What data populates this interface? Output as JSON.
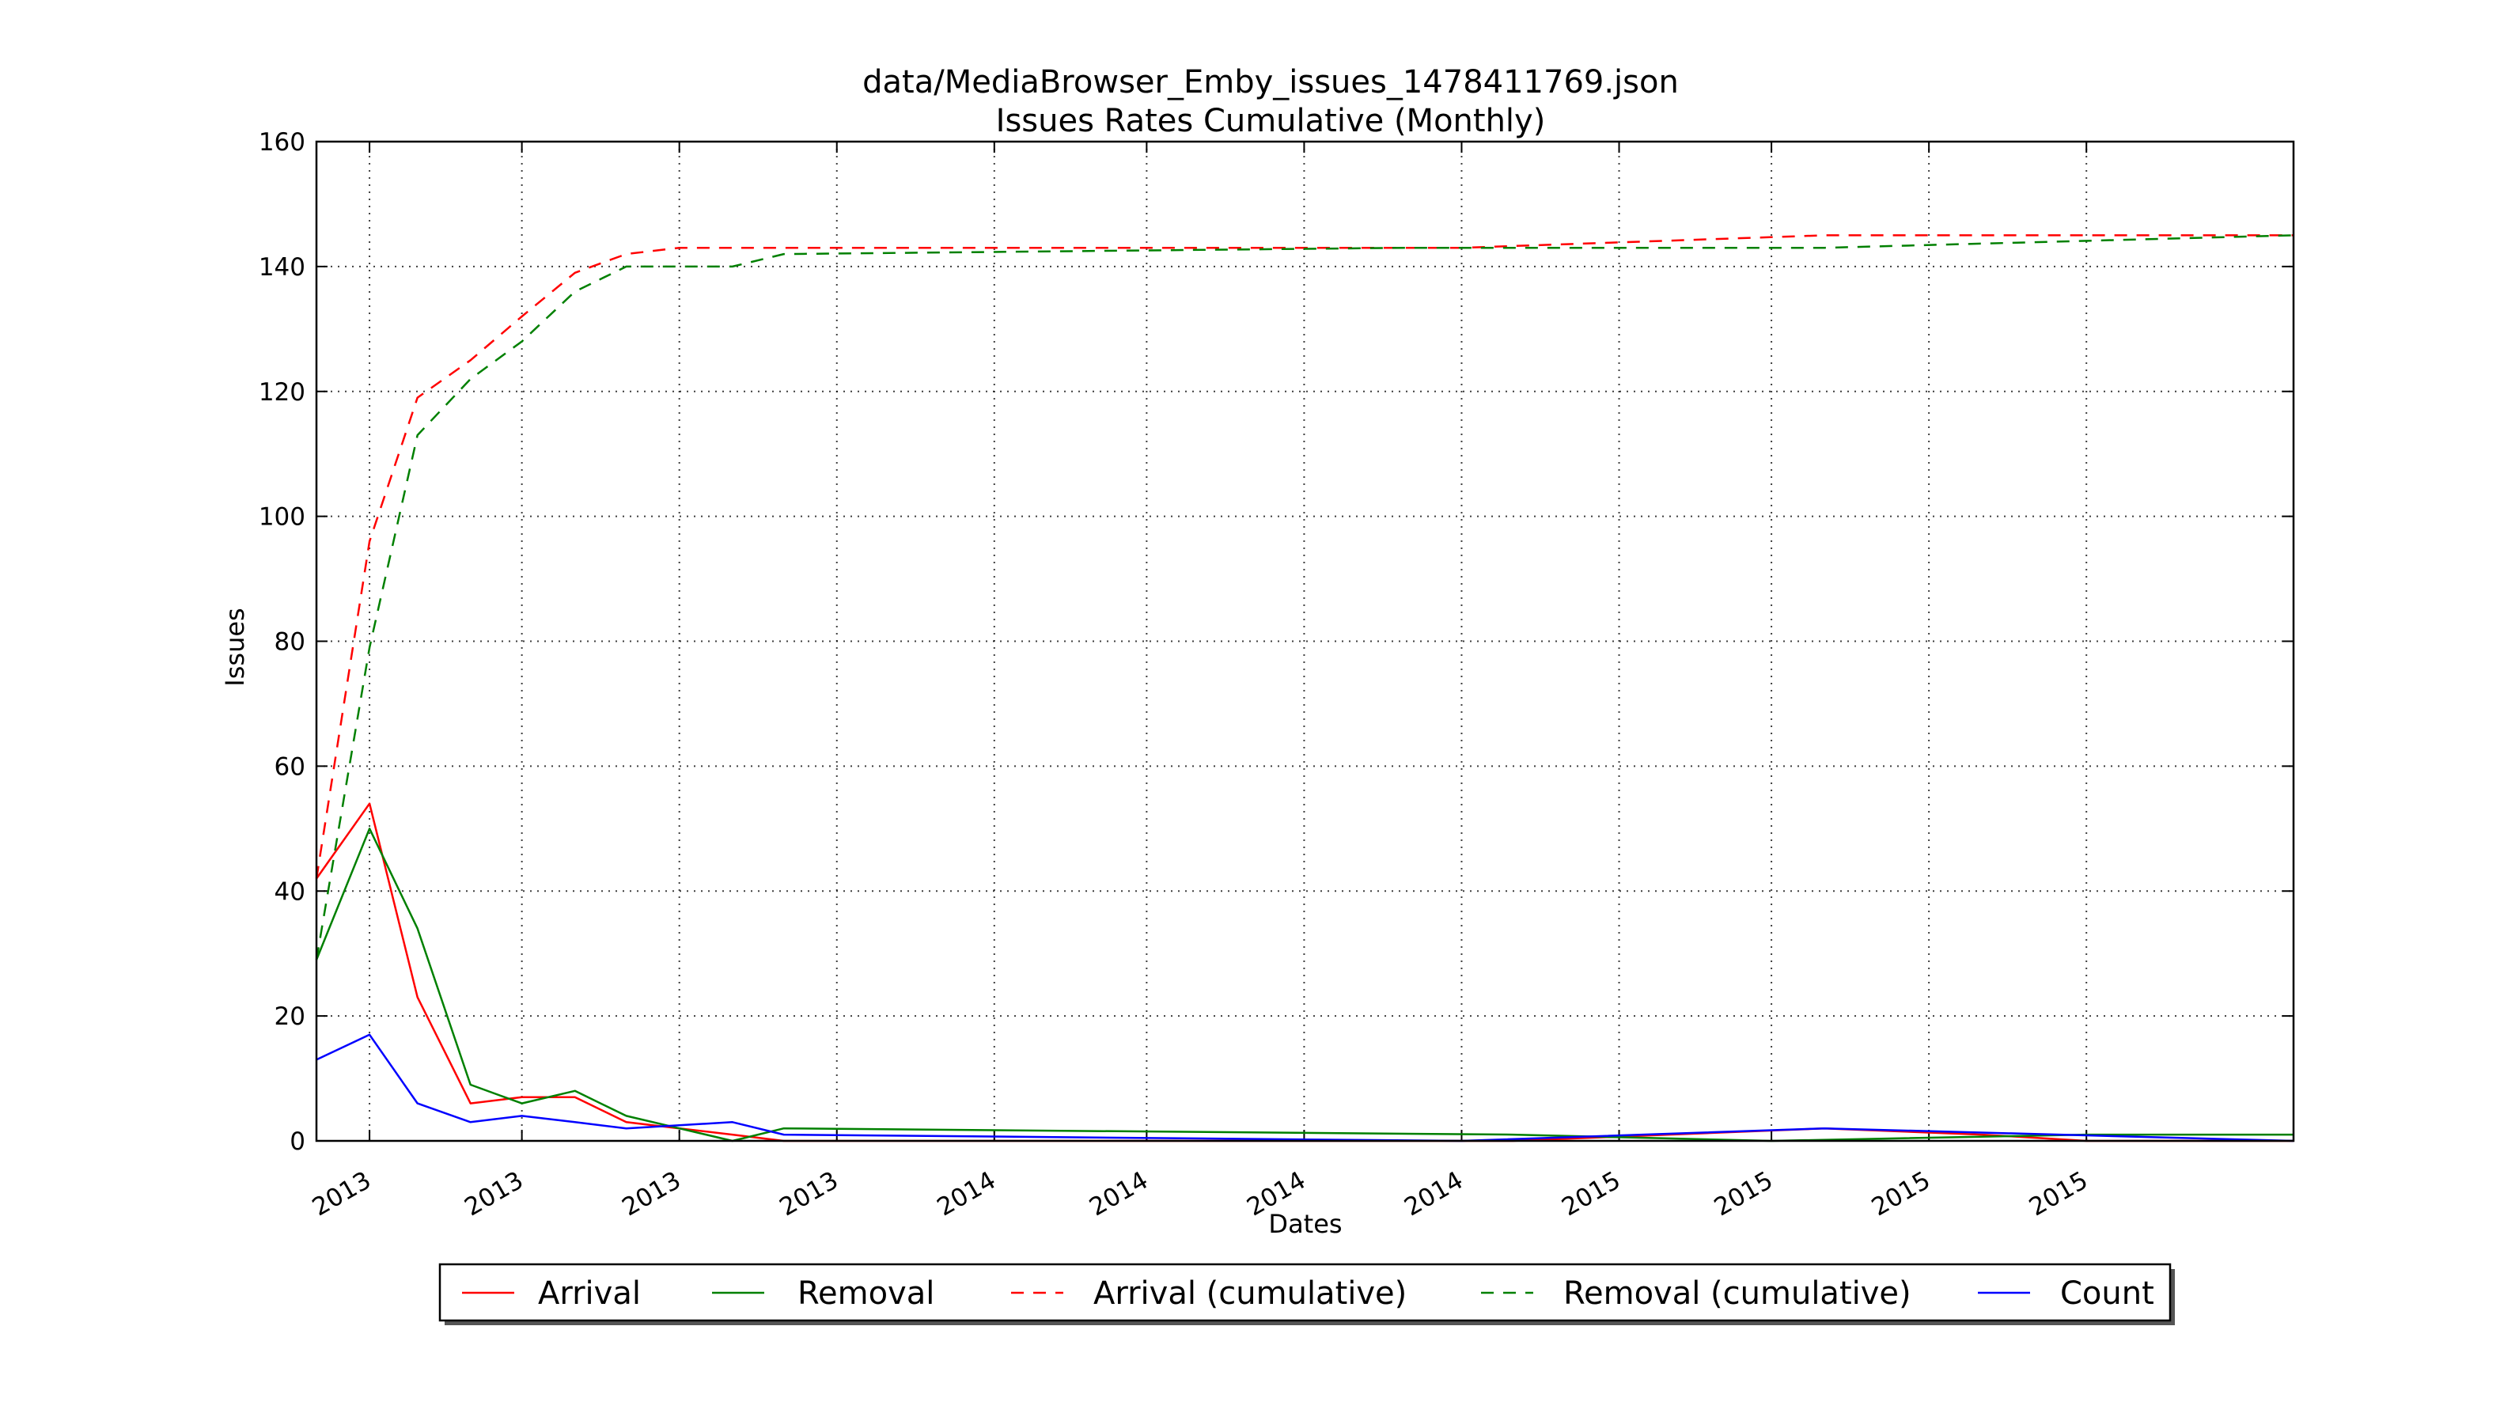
{
  "chart_data": {
    "type": "line",
    "title": "data/MediaBrowser_Emby_issues_1478411769.json",
    "subtitle": "Issues Rates Cumulative (Monthly)",
    "xlabel": "Dates",
    "ylabel": "Issues",
    "ylim": [
      0,
      160
    ],
    "yticks": [
      0,
      20,
      40,
      60,
      80,
      100,
      120,
      140,
      160
    ],
    "xlim": [
      "2013-01-01",
      "2016-03-01"
    ],
    "xticks": [
      {
        "date": "2013-02-01",
        "label": "2013"
      },
      {
        "date": "2013-05-01",
        "label": "2013"
      },
      {
        "date": "2013-08-01",
        "label": "2013"
      },
      {
        "date": "2013-11-01",
        "label": "2013"
      },
      {
        "date": "2014-02-01",
        "label": "2014"
      },
      {
        "date": "2014-05-01",
        "label": "2014"
      },
      {
        "date": "2014-08-01",
        "label": "2014"
      },
      {
        "date": "2014-11-01",
        "label": "2014"
      },
      {
        "date": "2015-02-01",
        "label": "2015"
      },
      {
        "date": "2015-05-01",
        "label": "2015"
      },
      {
        "date": "2015-08-01",
        "label": "2015"
      },
      {
        "date": "2015-11-01",
        "label": "2015"
      }
    ],
    "grid": true,
    "legend_position": "bottom-center",
    "series": [
      {
        "name": "Arrival",
        "color": "#ff0000",
        "dashed": false,
        "points": [
          [
            "2013-01-01",
            42
          ],
          [
            "2013-02-01",
            54
          ],
          [
            "2013-03-01",
            23
          ],
          [
            "2013-04-01",
            6
          ],
          [
            "2013-05-01",
            7
          ],
          [
            "2013-06-01",
            7
          ],
          [
            "2013-07-01",
            3
          ],
          [
            "2013-08-01",
            2
          ],
          [
            "2013-09-01",
            1
          ],
          [
            "2013-10-01",
            0
          ],
          [
            "2014-12-01",
            0
          ],
          [
            "2015-06-01",
            2
          ],
          [
            "2015-09-01",
            1
          ],
          [
            "2015-11-01",
            0
          ],
          [
            "2016-03-01",
            0
          ]
        ]
      },
      {
        "name": "Removal",
        "color": "#008000",
        "dashed": false,
        "points": [
          [
            "2013-01-01",
            29
          ],
          [
            "2013-02-01",
            50
          ],
          [
            "2013-03-01",
            34
          ],
          [
            "2013-04-01",
            9
          ],
          [
            "2013-05-01",
            6
          ],
          [
            "2013-06-01",
            8
          ],
          [
            "2013-07-01",
            4
          ],
          [
            "2013-08-01",
            2
          ],
          [
            "2013-09-01",
            0
          ],
          [
            "2013-10-01",
            2
          ],
          [
            "2014-12-01",
            1
          ],
          [
            "2015-05-01",
            0
          ],
          [
            "2015-11-01",
            1
          ],
          [
            "2016-03-01",
            1
          ]
        ]
      },
      {
        "name": "Arrival (cumulative)",
        "color": "#ff0000",
        "dashed": true,
        "points": [
          [
            "2013-01-01",
            42
          ],
          [
            "2013-02-01",
            96
          ],
          [
            "2013-03-01",
            119
          ],
          [
            "2013-04-01",
            125
          ],
          [
            "2013-05-01",
            132
          ],
          [
            "2013-06-01",
            139
          ],
          [
            "2013-07-01",
            142
          ],
          [
            "2013-08-01",
            143
          ],
          [
            "2013-09-01",
            143
          ],
          [
            "2014-11-01",
            143
          ],
          [
            "2015-06-01",
            145
          ],
          [
            "2016-03-01",
            145
          ]
        ]
      },
      {
        "name": "Removal (cumulative)",
        "color": "#008000",
        "dashed": true,
        "points": [
          [
            "2013-01-01",
            29
          ],
          [
            "2013-02-01",
            79
          ],
          [
            "2013-03-01",
            113
          ],
          [
            "2013-04-01",
            122
          ],
          [
            "2013-05-01",
            128
          ],
          [
            "2013-06-01",
            136
          ],
          [
            "2013-07-01",
            140
          ],
          [
            "2013-09-01",
            140
          ],
          [
            "2013-10-01",
            142
          ],
          [
            "2014-10-01",
            143
          ],
          [
            "2015-06-01",
            143
          ],
          [
            "2016-03-01",
            145
          ]
        ]
      },
      {
        "name": "Count",
        "color": "#0000ff",
        "dashed": false,
        "points": [
          [
            "2013-01-01",
            13
          ],
          [
            "2013-02-01",
            17
          ],
          [
            "2013-03-01",
            6
          ],
          [
            "2013-04-01",
            3
          ],
          [
            "2013-05-01",
            4
          ],
          [
            "2013-06-01",
            3
          ],
          [
            "2013-07-01",
            2
          ],
          [
            "2013-08-01",
            2.5
          ],
          [
            "2013-09-01",
            3
          ],
          [
            "2013-10-01",
            1
          ],
          [
            "2014-11-01",
            0
          ],
          [
            "2015-06-01",
            2
          ],
          [
            "2016-03-01",
            0
          ]
        ]
      }
    ]
  }
}
